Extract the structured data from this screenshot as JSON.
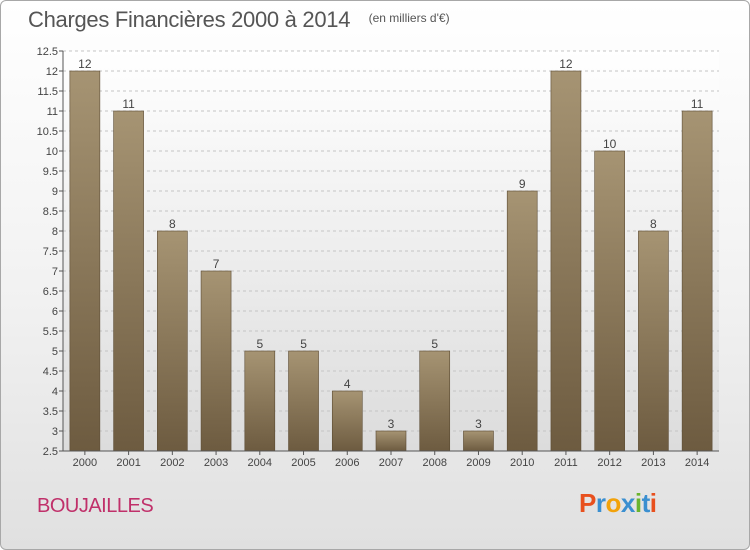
{
  "header": {
    "title": "Charges Financières 2000 à 2014",
    "subtitle": "(en milliers d'€)"
  },
  "footer": {
    "place": "BOUJAILLES",
    "logo": "Proxiti",
    "logo_colors": [
      "#e8501e",
      "#3a8fd0",
      "#f2a20a",
      "#3a8fd0",
      "#6ab42d",
      "#3a8fd0",
      "#e8501e"
    ]
  },
  "chart_data": {
    "type": "bar",
    "title": "Charges Financières 2000 à 2014",
    "subtitle": "(en milliers d'€)",
    "categories": [
      "2000",
      "2001",
      "2002",
      "2003",
      "2004",
      "2005",
      "2006",
      "2007",
      "2008",
      "2009",
      "2010",
      "2011",
      "2012",
      "2013",
      "2014"
    ],
    "values": [
      12,
      11,
      8,
      7,
      5,
      5,
      4,
      3,
      5,
      3,
      9,
      12,
      10,
      8,
      11
    ],
    "ylim": [
      2.5,
      12.5
    ],
    "yticks": [
      "2.5",
      "3",
      "3.5",
      "4",
      "4.5",
      "5",
      "5.5",
      "6",
      "6.5",
      "7",
      "7.5",
      "8",
      "8.5",
      "9",
      "9.5",
      "10",
      "10.5",
      "11",
      "11.5",
      "12",
      "12.5"
    ],
    "grid": true,
    "bar_color": "#8c7a5e",
    "xlabel": "",
    "ylabel": ""
  }
}
